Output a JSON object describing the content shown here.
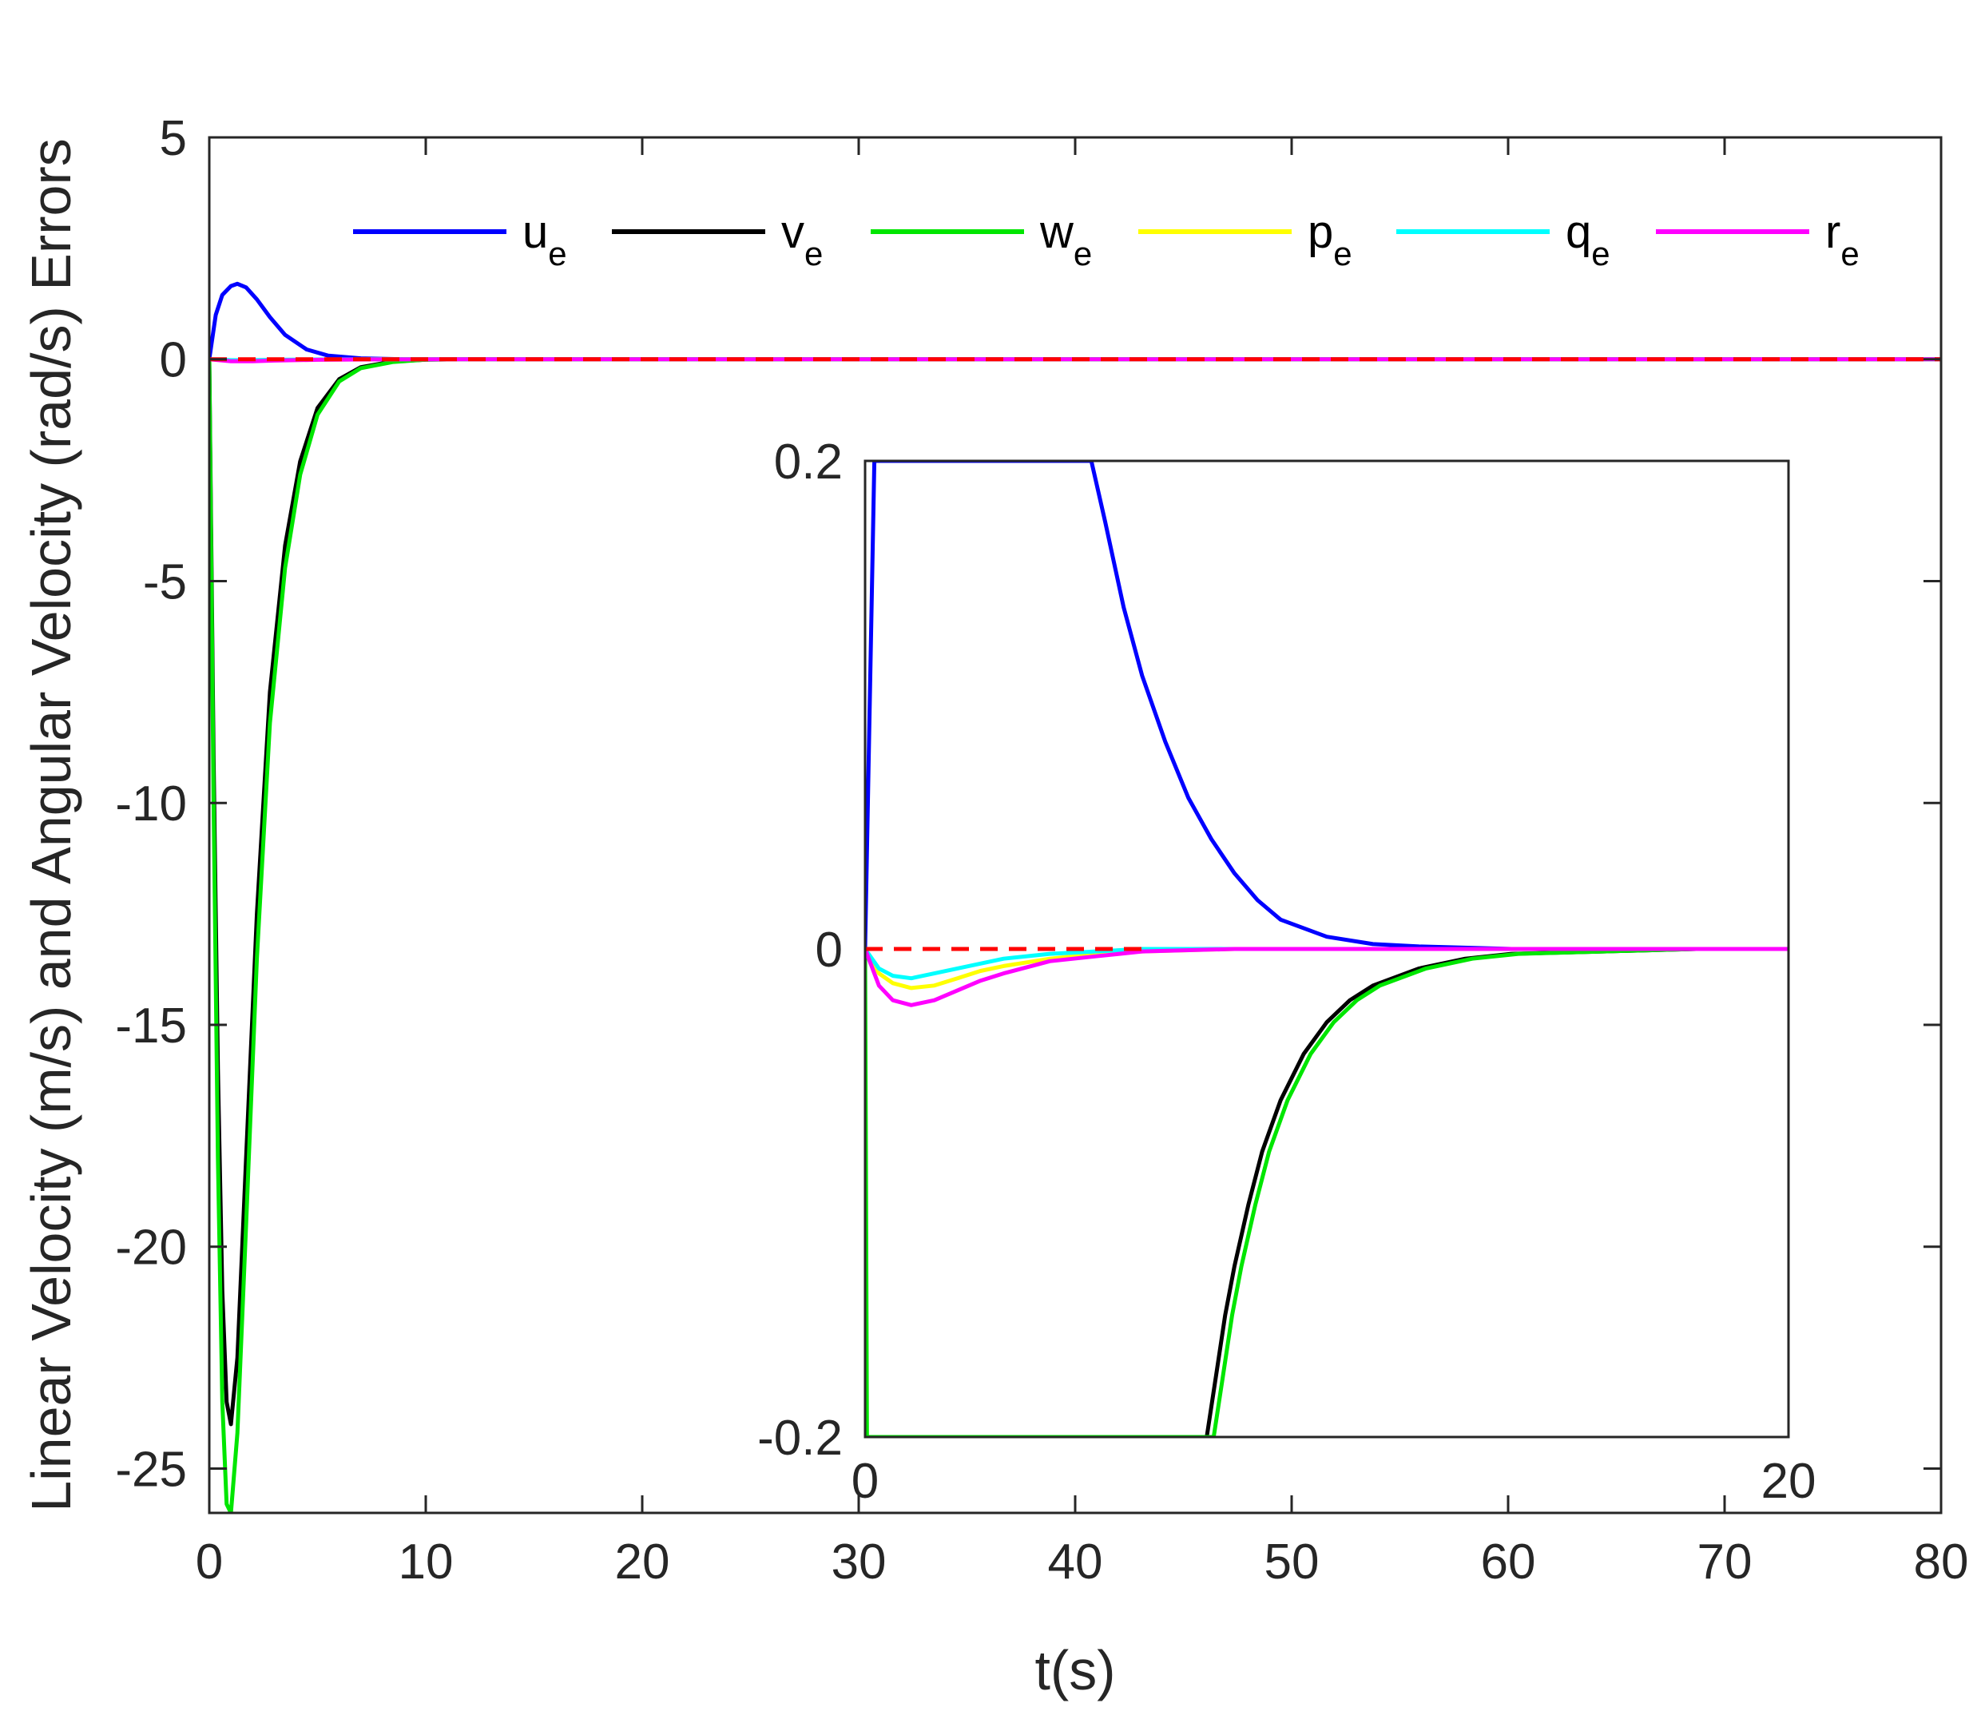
{
  "chart_data": [
    {
      "type": "line",
      "role": "main",
      "title": "",
      "xlabel": "t(s)",
      "ylabel": "Linear Velocity (m/s) and Angular Velocity (rad/s) Errors",
      "xlim": [
        0,
        80
      ],
      "ylim": [
        -26,
        5
      ],
      "xticks": [
        "0",
        "10",
        "20",
        "30",
        "40",
        "50",
        "60",
        "70",
        "80"
      ],
      "yticks": [
        "5",
        "0",
        "-5",
        "-10",
        "-15",
        "-20",
        "-25"
      ],
      "grid": false,
      "legend_placement": "top",
      "reference_line": {
        "y": 0,
        "color": "#ff0000",
        "style": "dashed"
      },
      "series": [
        {
          "name": "u",
          "sub": "e",
          "color": "#0000ff",
          "x": [
            0,
            0.3,
            0.6,
            1.0,
            1.3,
            1.7,
            2.2,
            2.8,
            3.5,
            4.5,
            5.5,
            7,
            9,
            12,
            80
          ],
          "y": [
            0,
            1.0,
            1.45,
            1.65,
            1.7,
            1.62,
            1.35,
            0.95,
            0.55,
            0.22,
            0.08,
            0.02,
            0.0,
            0.0,
            0.0
          ]
        },
        {
          "name": "v",
          "sub": "e",
          "color": "#000000",
          "x": [
            0,
            0.2,
            0.4,
            0.6,
            0.8,
            1.0,
            1.3,
            1.7,
            2.2,
            2.8,
            3.5,
            4.2,
            5.0,
            6.0,
            7.0,
            8.5,
            10,
            12,
            80
          ],
          "y": [
            0,
            -9,
            -16,
            -21,
            -23.5,
            -24,
            -22.5,
            -18,
            -12.5,
            -7.5,
            -4.2,
            -2.3,
            -1.1,
            -0.45,
            -0.18,
            -0.05,
            -0.01,
            0.0,
            0.0
          ]
        },
        {
          "name": "w",
          "sub": "e",
          "color": "#00e600",
          "x": [
            0,
            0.2,
            0.4,
            0.6,
            0.8,
            1.0,
            1.3,
            1.7,
            2.2,
            2.8,
            3.5,
            4.2,
            5.0,
            6.0,
            7.0,
            8.5,
            10,
            12,
            80
          ],
          "y": [
            0,
            -10,
            -18,
            -23.5,
            -25.8,
            -26,
            -24.2,
            -19.5,
            -13.5,
            -8.2,
            -4.7,
            -2.6,
            -1.25,
            -0.5,
            -0.2,
            -0.06,
            -0.01,
            0.0,
            0.0
          ]
        },
        {
          "name": "p",
          "sub": "e",
          "color": "#ffff00",
          "x": [
            0,
            1,
            2,
            3,
            5,
            8,
            12,
            80
          ],
          "y": [
            0,
            -0.03,
            -0.03,
            -0.02,
            -0.01,
            0.0,
            0.0,
            0.0
          ]
        },
        {
          "name": "q",
          "sub": "e",
          "color": "#00ffff",
          "x": [
            0,
            1,
            2,
            3,
            5,
            8,
            12,
            80
          ],
          "y": [
            0,
            -0.02,
            -0.02,
            -0.012,
            -0.005,
            0.0,
            0.0,
            0.0
          ]
        },
        {
          "name": "r",
          "sub": "e",
          "color": "#ff00ff",
          "x": [
            0,
            1,
            2,
            3,
            5,
            8,
            12,
            80
          ],
          "y": [
            0,
            -0.045,
            -0.045,
            -0.03,
            -0.012,
            -0.003,
            0.0,
            0.0
          ]
        }
      ]
    },
    {
      "type": "line",
      "role": "inset",
      "xlim": [
        0,
        20
      ],
      "ylim": [
        -0.2,
        0.2
      ],
      "xticks": [
        "0",
        "20"
      ],
      "yticks": [
        "0.2",
        "0",
        "-0.2"
      ],
      "reference_line": {
        "y": 0,
        "color": "#ff0000",
        "style": "dashed",
        "x_end": 6
      },
      "series": [
        {
          "name": "u",
          "color": "#0000ff",
          "x": [
            0,
            0.1,
            0.2,
            4.9,
            5.2,
            5.6,
            6.0,
            6.5,
            7.0,
            7.5,
            8.0,
            8.5,
            9.0,
            10,
            11,
            12,
            14,
            16,
            20
          ],
          "y": [
            0,
            0.1,
            0.2,
            0.2,
            0.175,
            0.14,
            0.112,
            0.085,
            0.062,
            0.045,
            0.031,
            0.02,
            0.012,
            0.005,
            0.002,
            0.001,
            0.0,
            0.0,
            0.0
          ]
        },
        {
          "name": "v",
          "color": "#000000",
          "x": [
            7.4,
            7.6,
            7.8,
            8.0,
            8.3,
            8.6,
            9.0,
            9.5,
            10,
            10.5,
            11,
            12,
            13,
            14,
            16,
            18,
            20
          ],
          "y": [
            -0.2,
            -0.175,
            -0.15,
            -0.13,
            -0.105,
            -0.083,
            -0.062,
            -0.043,
            -0.03,
            -0.021,
            -0.015,
            -0.008,
            -0.004,
            -0.002,
            -0.001,
            0.0,
            0.0
          ]
        },
        {
          "name": "w",
          "color": "#00e600",
          "x": [
            0,
            0.02,
            0.04,
            7.55,
            7.75,
            7.95,
            8.15,
            8.45,
            8.75,
            9.15,
            9.65,
            10.15,
            10.65,
            11.15,
            12.15,
            13.15,
            14.15,
            16,
            18,
            20
          ],
          "y": [
            0,
            -0.1,
            -0.2,
            -0.2,
            -0.175,
            -0.15,
            -0.13,
            -0.105,
            -0.083,
            -0.062,
            -0.043,
            -0.03,
            -0.021,
            -0.015,
            -0.008,
            -0.004,
            -0.002,
            -0.001,
            0.0,
            0.0
          ]
        },
        {
          "name": "p",
          "color": "#ffff00",
          "x": [
            0,
            0.3,
            0.6,
            1.0,
            1.5,
            2.0,
            2.5,
            3.0,
            4.0,
            5.0,
            6.0,
            8.0,
            10,
            20
          ],
          "y": [
            0,
            -0.01,
            -0.014,
            -0.016,
            -0.015,
            -0.012,
            -0.009,
            -0.007,
            -0.004,
            -0.002,
            -0.001,
            0.0,
            0.0,
            0.0
          ]
        },
        {
          "name": "q",
          "color": "#00ffff",
          "x": [
            0,
            0.3,
            0.6,
            1.0,
            1.5,
            2.0,
            2.5,
            3.0,
            4.0,
            5.0,
            6.0,
            8.0,
            10,
            20
          ],
          "y": [
            0,
            -0.008,
            -0.011,
            -0.012,
            -0.01,
            -0.008,
            -0.006,
            -0.004,
            -0.002,
            -0.001,
            0.0,
            0.0,
            0.0,
            0.0
          ]
        },
        {
          "name": "r",
          "color": "#ff00ff",
          "x": [
            0,
            0.3,
            0.6,
            1.0,
            1.5,
            2.0,
            2.5,
            3.0,
            4.0,
            5.0,
            6.0,
            8.0,
            10,
            20
          ],
          "y": [
            0,
            -0.015,
            -0.021,
            -0.023,
            -0.021,
            -0.017,
            -0.013,
            -0.01,
            -0.005,
            -0.003,
            -0.001,
            0.0,
            0.0,
            0.0
          ]
        }
      ]
    }
  ]
}
